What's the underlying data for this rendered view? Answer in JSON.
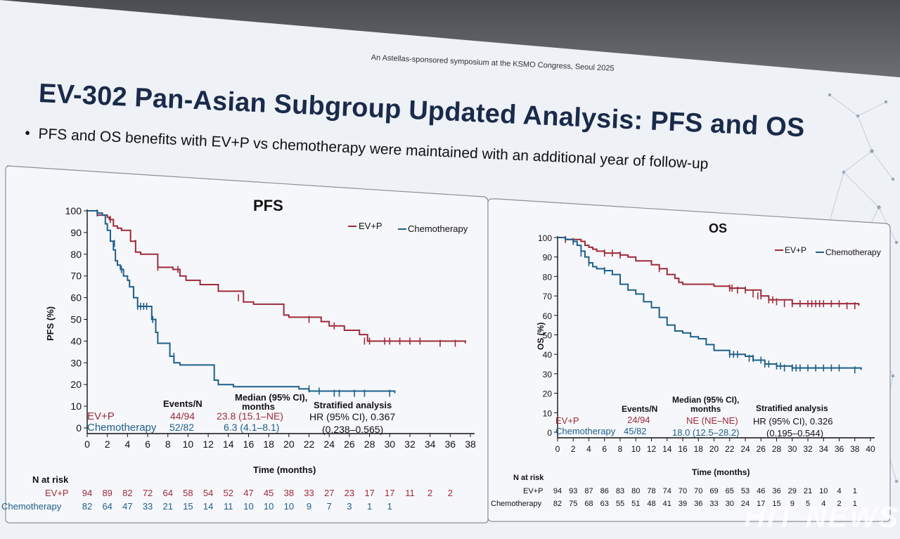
{
  "slide": {
    "top_note": "An Astellas-sponsored symposium at the KSMO Congress, Seoul 2025",
    "title": "EV-302 Pan-Asian Subgroup Updated Analysis: PFS and OS",
    "bullet": "•",
    "subtitle": "PFS and OS benefits with EV+P vs chemotherapy were maintained with an additional year of follow-up",
    "watermark": "HIT NEWS"
  },
  "colors": {
    "evp": "#9e2a3a",
    "chemo": "#1d5f8a",
    "axis": "#111111",
    "panel_border": "#8a9099"
  },
  "chart_data": [
    {
      "id": "pfs",
      "type": "line",
      "title": "PFS",
      "ylabel": "PFS (%)",
      "xlabel": "Time (months)",
      "xlim": [
        0,
        38
      ],
      "ylim": [
        0,
        100
      ],
      "xticks": [
        "0",
        "2",
        "4",
        "6",
        "8",
        "10",
        "12",
        "14",
        "16",
        "18",
        "20",
        "22",
        "24",
        "26",
        "28",
        "30",
        "32",
        "34",
        "36",
        "38"
      ],
      "yticks": [
        "0",
        "10",
        "20",
        "30",
        "40",
        "50",
        "60",
        "70",
        "80",
        "90",
        "100"
      ],
      "legend": {
        "position": "top-right",
        "items": [
          "EV+P",
          "Chemotherapy"
        ]
      },
      "series": [
        {
          "name": "EV+P",
          "color": "#9e2a3a",
          "x": [
            0,
            1,
            1.5,
            2,
            2.2,
            2.6,
            3,
            3.4,
            4.3,
            4.8,
            5.3,
            7,
            8.5,
            9.2,
            9.8,
            11.2,
            13,
            15.5,
            16.5,
            19.5,
            20,
            21,
            23.2,
            24,
            25.5,
            27,
            27.8,
            37.5
          ],
          "y": [
            100,
            98,
            98,
            97,
            96,
            93,
            92,
            91,
            86,
            81,
            80,
            74,
            73,
            70,
            68,
            66,
            63,
            58,
            57,
            52,
            51,
            51,
            49,
            47,
            45,
            43,
            40,
            39
          ],
          "censors": [
            [
              2.3,
              96
            ],
            [
              4.8,
              85
            ],
            [
              7,
              74
            ],
            [
              9,
              73
            ],
            [
              15,
              60
            ],
            [
              22,
              50
            ],
            [
              24.5,
              47
            ],
            [
              27.5,
              40
            ],
            [
              28,
              40
            ],
            [
              29.5,
              40
            ],
            [
              30,
              40
            ],
            [
              31,
              40
            ],
            [
              32,
              40
            ],
            [
              33,
              40
            ],
            [
              35,
              39
            ],
            [
              36.5,
              39
            ]
          ]
        },
        {
          "name": "Chemotherapy",
          "color": "#1d5f8a",
          "x": [
            0,
            1,
            1.5,
            1.8,
            2,
            2.3,
            2.6,
            2.8,
            3,
            3.3,
            3.6,
            4,
            4.2,
            4.6,
            5,
            6,
            6.4,
            6.8,
            7,
            8.2,
            8.6,
            9.2,
            12.6,
            13,
            14.5,
            21,
            22,
            30.5
          ],
          "y": [
            100,
            99,
            98,
            94,
            91,
            86,
            82,
            77,
            75,
            73,
            70,
            68,
            65,
            60,
            56,
            56,
            50,
            44,
            39,
            33,
            30,
            29,
            22,
            20,
            19,
            18,
            17,
            16
          ],
          "censors": [
            [
              1,
              99
            ],
            [
              2.7,
              85
            ],
            [
              3.4,
              73
            ],
            [
              4.6,
              62
            ],
            [
              5,
              56
            ],
            [
              5.3,
              56
            ],
            [
              5.6,
              56
            ],
            [
              5.9,
              56
            ],
            [
              6.5,
              50
            ],
            [
              8.6,
              33
            ],
            [
              22,
              18
            ],
            [
              23,
              17
            ],
            [
              24.5,
              16
            ],
            [
              25,
              16
            ],
            [
              26.5,
              16
            ],
            [
              27.5,
              16
            ],
            [
              30,
              16
            ]
          ]
        }
      ],
      "summary": {
        "col_events": "Events/N",
        "col_median": "Median (95% CI),",
        "col_median2": "months",
        "col_strat": "Stratified analysis",
        "rows": [
          {
            "label": "EV+P",
            "events": "44/94",
            "median": "23.8 (15.1–NE)"
          },
          {
            "label": "Chemotherapy",
            "events": "52/82",
            "median": "6.3 (4.1–8.1)"
          }
        ],
        "hr": "HR (95% CI), 0.367",
        "ci": "(0.238–0.565)"
      },
      "risk": {
        "header": "N at risk",
        "rows": [
          {
            "label": "EV+P",
            "values": [
              "94",
              "89",
              "82",
              "72",
              "64",
              "58",
              "54",
              "52",
              "47",
              "45",
              "38",
              "33",
              "27",
              "23",
              "17",
              "17",
              "11",
              "2",
              "2"
            ]
          },
          {
            "label": "Chemotherapy",
            "values": [
              "82",
              "64",
              "47",
              "33",
              "21",
              "15",
              "14",
              "11",
              "10",
              "10",
              "10",
              "9",
              "7",
              "3",
              "1",
              "1"
            ]
          }
        ]
      }
    },
    {
      "id": "os",
      "type": "line",
      "title": "OS",
      "ylabel": "OS (%)",
      "xlabel": "Time (months)",
      "xlim": [
        0,
        40
      ],
      "ylim": [
        0,
        100
      ],
      "xticks": [
        "0",
        "2",
        "4",
        "6",
        "8",
        "10",
        "12",
        "14",
        "16",
        "18",
        "20",
        "22",
        "24",
        "26",
        "28",
        "30",
        "32",
        "34",
        "36",
        "38",
        "40"
      ],
      "yticks": [
        "0",
        "10",
        "20",
        "30",
        "40",
        "50",
        "60",
        "70",
        "80",
        "90",
        "100"
      ],
      "legend": {
        "position": "top-right",
        "items": [
          "EV+P",
          "Chemotherapy"
        ]
      },
      "series": [
        {
          "name": "EV+P",
          "color": "#9e2a3a",
          "x": [
            0,
            1,
            2,
            3,
            3.5,
            4,
            4.5,
            5,
            6,
            7,
            8,
            9,
            10,
            11,
            12,
            13,
            14,
            15,
            15.5,
            16,
            17,
            18,
            20,
            22,
            24,
            26,
            27,
            30,
            38.5
          ],
          "y": [
            100,
            99,
            99,
            98,
            96,
            95,
            94,
            93,
            92,
            92,
            91,
            90,
            88,
            88,
            86,
            84,
            81,
            79,
            77,
            76,
            76,
            76,
            75,
            74,
            73,
            70,
            68,
            66,
            65
          ],
          "censors": [
            [
              1,
              99
            ],
            [
              6,
              92
            ],
            [
              7,
              92
            ],
            [
              8,
              91
            ],
            [
              13,
              84
            ],
            [
              22,
              74
            ],
            [
              22.3,
              74
            ],
            [
              23,
              73
            ],
            [
              24,
              73
            ],
            [
              25,
              71
            ],
            [
              25.6,
              70
            ],
            [
              26,
              70
            ],
            [
              27,
              68
            ],
            [
              27.5,
              68
            ],
            [
              28,
              67
            ],
            [
              29,
              66
            ],
            [
              30,
              66
            ],
            [
              31,
              66
            ],
            [
              32,
              66
            ],
            [
              32.5,
              66
            ],
            [
              33,
              66
            ],
            [
              33.5,
              66
            ],
            [
              34,
              66
            ],
            [
              35,
              66
            ],
            [
              36,
              66
            ],
            [
              37,
              65
            ],
            [
              38,
              65
            ]
          ]
        },
        {
          "name": "Chemotherapy",
          "color": "#1d5f8a",
          "x": [
            0,
            1,
            2,
            2.5,
            3,
            3.5,
            4,
            4.5,
            5,
            6,
            7,
            8,
            9,
            10,
            11,
            12,
            13,
            14,
            15,
            16,
            17,
            18,
            19,
            20,
            22,
            24,
            25,
            26,
            26.5,
            28,
            30,
            38.8
          ],
          "y": [
            100,
            99,
            98,
            96,
            93,
            90,
            87,
            85,
            84,
            83,
            81,
            76,
            73,
            71,
            67,
            64,
            59,
            55,
            52,
            51,
            49,
            48,
            45,
            42,
            40,
            39,
            37,
            37,
            35,
            34,
            33,
            32
          ],
          "censors": [
            [
              2,
              98
            ],
            [
              3,
              92
            ],
            [
              4,
              87
            ],
            [
              6,
              83
            ],
            [
              22,
              40
            ],
            [
              22.5,
              40
            ],
            [
              23,
              40
            ],
            [
              24.5,
              38
            ],
            [
              25,
              38
            ],
            [
              26,
              37
            ],
            [
              26.5,
              35
            ],
            [
              27,
              35
            ],
            [
              28,
              34
            ],
            [
              28.5,
              34
            ],
            [
              29,
              33
            ],
            [
              30,
              33
            ],
            [
              30.5,
              33
            ],
            [
              31,
              33
            ],
            [
              32,
              33
            ],
            [
              33,
              33
            ],
            [
              34,
              33
            ],
            [
              35,
              33
            ],
            [
              36,
              33
            ],
            [
              38,
              32
            ]
          ]
        }
      ],
      "summary": {
        "col_events": "Events/N",
        "col_median": "Median (95% CI),",
        "col_median2": "months",
        "col_strat": "Stratified analysis",
        "rows": [
          {
            "label": "EV+P",
            "events": "24/94",
            "median": "NE (NE–NE)"
          },
          {
            "label": "Chemotherapy",
            "events": "45/82",
            "median": "18.0 (12.5–28.2)"
          }
        ],
        "hr": "HR (95% CI), 0.326",
        "ci": "(0.195–0.544)"
      },
      "risk": {
        "header": "N at risk",
        "rows": [
          {
            "label": "EV+P",
            "values": [
              "94",
              "93",
              "87",
              "86",
              "83",
              "80",
              "78",
              "74",
              "70",
              "70",
              "69",
              "65",
              "53",
              "46",
              "36",
              "29",
              "21",
              "10",
              "4",
              "1"
            ]
          },
          {
            "label": "Chemotherapy",
            "values": [
              "82",
              "75",
              "68",
              "63",
              "55",
              "51",
              "48",
              "41",
              "39",
              "36",
              "33",
              "30",
              "24",
              "17",
              "15",
              "9",
              "5",
              "4",
              "2",
              "1"
            ]
          }
        ]
      }
    }
  ]
}
